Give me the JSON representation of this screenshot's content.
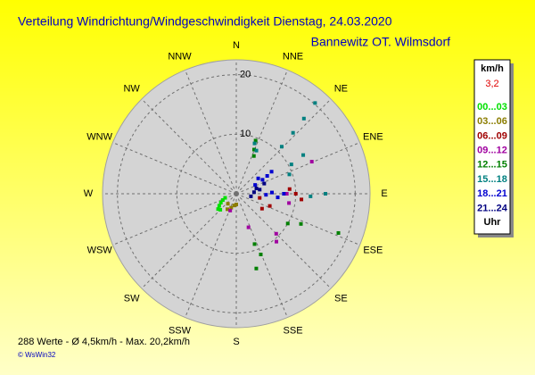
{
  "chart_data": {
    "type": "polar-scatter",
    "title": "Verteilung Windrichtung/Windgeschwindigkeit  Dienstag, 24.03.2020",
    "subtitle": "Bannewitz OT. Wilmsdorf",
    "directions": [
      "N",
      "NNE",
      "NE",
      "ENE",
      "E",
      "ESE",
      "SE",
      "SSE",
      "S",
      "SSW",
      "SW",
      "WSW",
      "W",
      "WNW",
      "NW",
      "NNW"
    ],
    "rlim": [
      0,
      22.5
    ],
    "rticks": [
      10,
      20
    ],
    "legend_title": "km/h",
    "current_value": "3,2",
    "legend_footer": "Uhr",
    "summary": "288 Werte   -   Ø 4,5km/h   -   Max. 20,2km/h",
    "credit": "© WsWin32",
    "series": [
      {
        "name": "00...03",
        "color": "#00e000",
        "theta": [
          235,
          240,
          230,
          245,
          250,
          225
        ],
        "r": [
          3.5,
          3.0,
          4.0,
          2.5,
          2.0,
          3.8
        ]
      },
      {
        "name": "03...06",
        "color": "#8b7d00",
        "theta": [
          200,
          210,
          190,
          220,
          180
        ],
        "r": [
          2.5,
          3.0,
          2.0,
          2.2,
          1.8
        ]
      },
      {
        "name": "06...09",
        "color": "#a00000",
        "theta": [
          90,
          95,
          85,
          110,
          120,
          100
        ],
        "r": [
          10,
          11,
          9,
          6,
          5,
          4
        ]
      },
      {
        "name": "09...12",
        "color": "#a000a0",
        "theta": [
          67,
          135,
          140,
          90,
          100,
          200,
          160
        ],
        "r": [
          13.8,
          9.5,
          10.5,
          8.5,
          9,
          3,
          6
        ]
      },
      {
        "name": "12...15",
        "color": "#008000",
        "theta": [
          111,
          115,
          158,
          160,
          20,
          22,
          25,
          120,
          165
        ],
        "r": [
          18.4,
          12,
          11,
          9,
          9.5,
          8,
          7,
          10,
          13
        ]
      },
      {
        "name": "15...18",
        "color": "#008080",
        "theta": [
          41,
          42,
          43,
          44,
          60,
          62,
          90,
          92,
          20,
          25,
          70
        ],
        "r": [
          20.2,
          17,
          14,
          11,
          13,
          10.5,
          15,
          12.5,
          9,
          8,
          9.5
        ]
      },
      {
        "name": "18...21",
        "color": "#0000d0",
        "theta": [
          60,
          58,
          62,
          90,
          88,
          92,
          55,
          65,
          95
        ],
        "r": [
          6,
          7,
          5,
          8,
          6,
          5,
          4.5,
          3.5,
          7
        ]
      },
      {
        "name": "21...24",
        "color": "#000080",
        "theta": [
          85,
          80,
          70,
          100,
          75
        ],
        "r": [
          3,
          4,
          5,
          2.5,
          3.5
        ]
      }
    ]
  }
}
